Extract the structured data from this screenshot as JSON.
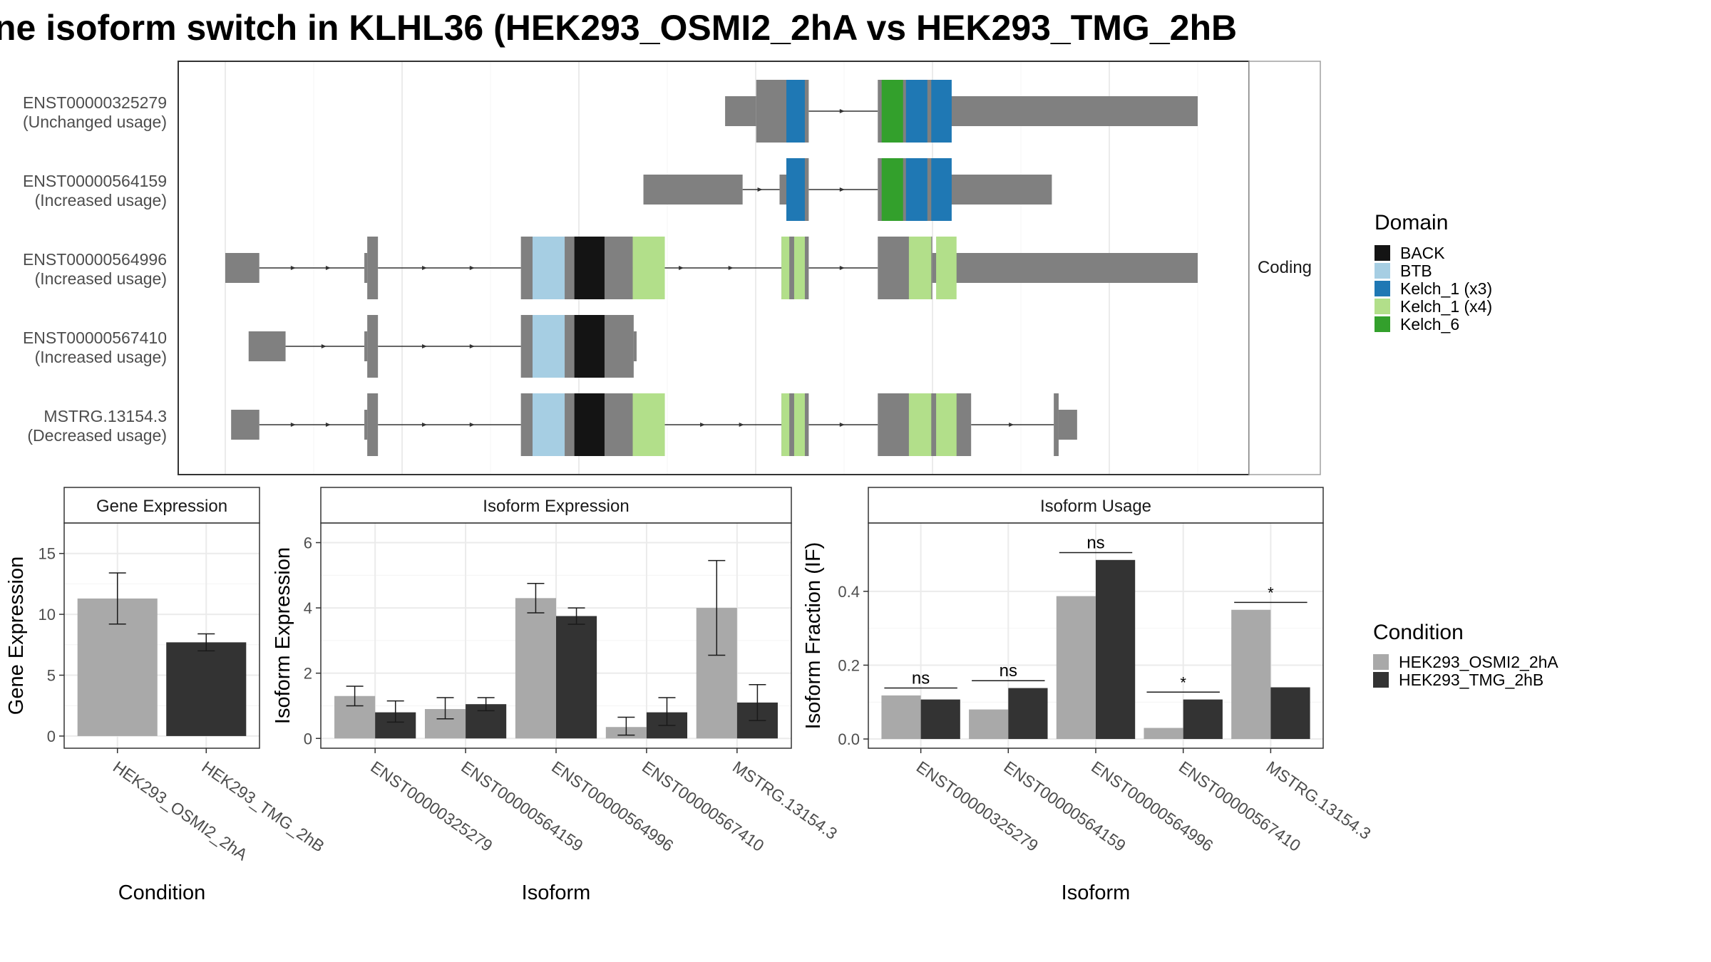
{
  "title": "ne isoform switch in KLHL36 (HEK293_OSMI2_2hA vs HEK293_TMG_2hB",
  "colors": {
    "exon": "#808080",
    "intron": "#333333",
    "cond1": "#a9a9a9",
    "cond2": "#333333",
    "BACK": "#141414",
    "BTB": "#a6cee3",
    "Kelch_1 (x3)": "#1f78b4",
    "Kelch_1 (x4)": "#b2df8a",
    "Kelch_6": "#33a02c"
  },
  "structure": {
    "strip_label": "Coding",
    "legend_title": "Domain",
    "legend_items": [
      "BACK",
      "BTB",
      "Kelch_1 (x3)",
      "Kelch_1 (x4)",
      "Kelch_6"
    ],
    "transcripts": [
      {
        "id": "ENST00000325279",
        "status": "(Unchanged usage)",
        "segments": [
          {
            "start": 0.514,
            "end": 0.546,
            "type": "utr"
          },
          {
            "start": 0.546,
            "end": 0.6,
            "type": "cds"
          },
          {
            "start": 0.671,
            "end": 0.727,
            "type": "cds"
          },
          {
            "start": 0.727,
            "end": 1.0,
            "type": "utr"
          }
        ],
        "domains": [
          {
            "start": 0.577,
            "end": 0.596,
            "name": "Kelch_1 (x3)"
          },
          {
            "start": 0.675,
            "end": 0.697,
            "name": "Kelch_6"
          },
          {
            "start": 0.7,
            "end": 0.722,
            "name": "Kelch_1 (x3)"
          },
          {
            "start": 0.726,
            "end": 0.747,
            "name": "Kelch_1 (x3)"
          }
        ]
      },
      {
        "id": "ENST00000564159",
        "status": "(Increased usage)",
        "segments": [
          {
            "start": 0.43,
            "end": 0.532,
            "type": "utr"
          },
          {
            "start": 0.57,
            "end": 0.577,
            "type": "utr"
          },
          {
            "start": 0.577,
            "end": 0.6,
            "type": "cds"
          },
          {
            "start": 0.671,
            "end": 0.727,
            "type": "cds"
          },
          {
            "start": 0.727,
            "end": 0.85,
            "type": "utr"
          }
        ],
        "domains": [
          {
            "start": 0.577,
            "end": 0.596,
            "name": "Kelch_1 (x3)"
          },
          {
            "start": 0.675,
            "end": 0.697,
            "name": "Kelch_6"
          },
          {
            "start": 0.7,
            "end": 0.722,
            "name": "Kelch_1 (x3)"
          },
          {
            "start": 0.726,
            "end": 0.747,
            "name": "Kelch_1 (x3)"
          }
        ]
      },
      {
        "id": "ENST00000564996",
        "status": "(Increased usage)",
        "segments": [
          {
            "start": 0.0,
            "end": 0.035,
            "type": "utr"
          },
          {
            "start": 0.143,
            "end": 0.146,
            "type": "utr"
          },
          {
            "start": 0.146,
            "end": 0.157,
            "type": "cds"
          },
          {
            "start": 0.304,
            "end": 0.419,
            "type": "cds"
          },
          {
            "start": 0.572,
            "end": 0.6,
            "type": "cds"
          },
          {
            "start": 0.671,
            "end": 0.727,
            "type": "cds"
          },
          {
            "start": 0.727,
            "end": 1.0,
            "type": "utr"
          }
        ],
        "domains": [
          {
            "start": 0.316,
            "end": 0.349,
            "name": "BTB"
          },
          {
            "start": 0.359,
            "end": 0.39,
            "name": "BACK"
          },
          {
            "start": 0.419,
            "end": 0.452,
            "name": "Kelch_1 (x4)"
          },
          {
            "start": 0.572,
            "end": 0.58,
            "name": "Kelch_1 (x4)"
          },
          {
            "start": 0.585,
            "end": 0.596,
            "name": "Kelch_1 (x4)"
          },
          {
            "start": 0.703,
            "end": 0.726,
            "name": "Kelch_1 (x4)"
          },
          {
            "start": 0.731,
            "end": 0.752,
            "name": "Kelch_1 (x4)"
          }
        ]
      },
      {
        "id": "ENST00000567410",
        "status": "(Increased usage)",
        "segments": [
          {
            "start": 0.024,
            "end": 0.062,
            "type": "utr"
          },
          {
            "start": 0.143,
            "end": 0.146,
            "type": "utr"
          },
          {
            "start": 0.146,
            "end": 0.157,
            "type": "cds"
          },
          {
            "start": 0.304,
            "end": 0.42,
            "type": "cds"
          },
          {
            "start": 0.42,
            "end": 0.423,
            "type": "utr"
          }
        ],
        "domains": [
          {
            "start": 0.316,
            "end": 0.349,
            "name": "BTB"
          },
          {
            "start": 0.359,
            "end": 0.39,
            "name": "BACK"
          }
        ]
      },
      {
        "id": "MSTRG.13154.3",
        "status": "(Decreased usage)",
        "segments": [
          {
            "start": 0.006,
            "end": 0.035,
            "type": "utr"
          },
          {
            "start": 0.143,
            "end": 0.146,
            "type": "utr"
          },
          {
            "start": 0.146,
            "end": 0.157,
            "type": "cds"
          },
          {
            "start": 0.304,
            "end": 0.452,
            "type": "cds"
          },
          {
            "start": 0.572,
            "end": 0.6,
            "type": "cds"
          },
          {
            "start": 0.671,
            "end": 0.767,
            "type": "cds"
          },
          {
            "start": 0.852,
            "end": 0.857,
            "type": "cds"
          },
          {
            "start": 0.857,
            "end": 0.876,
            "type": "utr"
          }
        ],
        "domains": [
          {
            "start": 0.316,
            "end": 0.349,
            "name": "BTB"
          },
          {
            "start": 0.359,
            "end": 0.39,
            "name": "BACK"
          },
          {
            "start": 0.419,
            "end": 0.452,
            "name": "Kelch_1 (x4)"
          },
          {
            "start": 0.572,
            "end": 0.58,
            "name": "Kelch_1 (x4)"
          },
          {
            "start": 0.585,
            "end": 0.596,
            "name": "Kelch_1 (x4)"
          },
          {
            "start": 0.703,
            "end": 0.726,
            "name": "Kelch_1 (x4)"
          },
          {
            "start": 0.731,
            "end": 0.752,
            "name": "Kelch_1 (x4)"
          }
        ]
      }
    ]
  },
  "condition_legend": {
    "title": "Condition",
    "items": [
      "HEK293_OSMI2_2hA",
      "HEK293_TMG_2hB"
    ]
  },
  "chart_data": [
    {
      "type": "bar",
      "title": "Gene Expression",
      "xlabel": "Condition",
      "ylabel": "Gene Expression",
      "categories": [
        "HEK293_OSMI2_2hA",
        "HEK293_TMG_2hB"
      ],
      "values": [
        11.3,
        7.7
      ],
      "errors": [
        [
          9.2,
          13.4
        ],
        [
          7.0,
          8.4
        ]
      ],
      "ylim": [
        -1,
        17.5
      ],
      "yticks": [
        0,
        5,
        10,
        15
      ]
    },
    {
      "type": "bar",
      "title": "Isoform Expression",
      "xlabel": "Isoform",
      "ylabel": "Isoform Expression",
      "categories": [
        "ENST00000325279",
        "ENST00000564159",
        "ENST00000564996",
        "ENST00000567410",
        "MSTRG.13154.3"
      ],
      "series": [
        {
          "name": "HEK293_OSMI2_2hA",
          "values": [
            1.3,
            0.9,
            4.3,
            0.35,
            4.0
          ],
          "errors": [
            [
              1.0,
              1.6
            ],
            [
              0.6,
              1.25
            ],
            [
              3.85,
              4.75
            ],
            [
              0.1,
              0.65
            ],
            [
              2.55,
              5.45
            ]
          ]
        },
        {
          "name": "HEK293_TMG_2hB",
          "values": [
            0.8,
            1.05,
            3.75,
            0.8,
            1.1
          ],
          "errors": [
            [
              0.5,
              1.15
            ],
            [
              0.85,
              1.25
            ],
            [
              3.5,
              4.0
            ],
            [
              0.4,
              1.25
            ],
            [
              0.55,
              1.65
            ]
          ]
        }
      ],
      "ylim": [
        -0.3,
        6.6
      ],
      "yticks": [
        0,
        2,
        4,
        6
      ]
    },
    {
      "type": "bar",
      "title": "Isoform Usage",
      "xlabel": "Isoform",
      "ylabel": "Isoform Fraction (IF)",
      "categories": [
        "ENST00000325279",
        "ENST00000564159",
        "ENST00000564996",
        "ENST00000567410",
        "MSTRG.13154.3"
      ],
      "series": [
        {
          "name": "HEK293_OSMI2_2hA",
          "values": [
            0.118,
            0.08,
            0.387,
            0.03,
            0.35
          ]
        },
        {
          "name": "HEK293_TMG_2hB",
          "values": [
            0.107,
            0.138,
            0.485,
            0.107,
            0.14
          ]
        }
      ],
      "significance": [
        "ns",
        "ns",
        "ns",
        "*",
        "*"
      ],
      "ylim": [
        -0.025,
        0.585
      ],
      "yticks": [
        0.0,
        0.2,
        0.4
      ],
      "ytick_labels": [
        "0.0",
        "0.2",
        "0.4"
      ]
    }
  ]
}
